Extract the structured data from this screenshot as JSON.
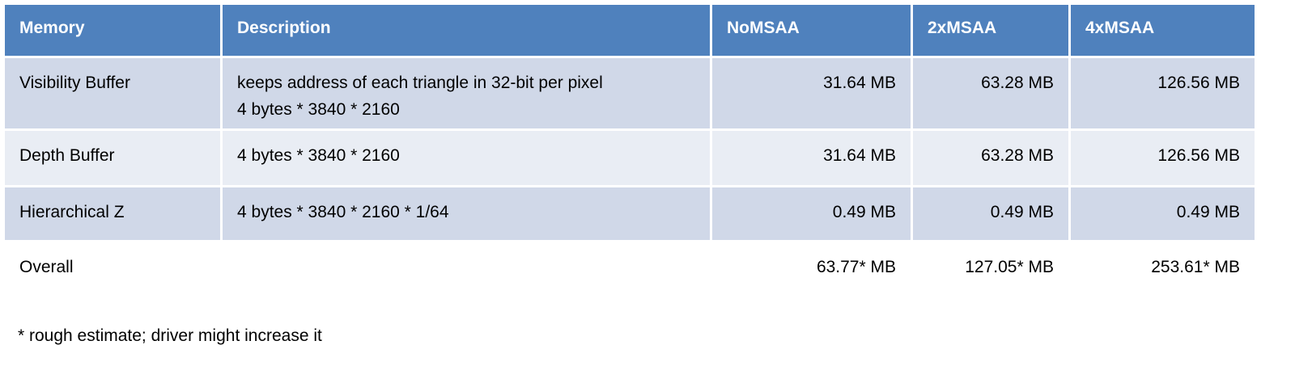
{
  "table": {
    "header": [
      "Memory",
      "Description",
      "NoMSAA",
      "2xMSAA",
      "4xMSAA"
    ],
    "rows": [
      [
        "Visibility Buffer",
        [
          "keeps address of each triangle in 32-bit per pixel",
          "4 bytes * 3840 * 2160"
        ],
        "31.64 MB",
        "63.28 MB",
        "126.56 MB"
      ],
      [
        "Depth Buffer",
        [
          "4 bytes * 3840 * 2160"
        ],
        "31.64 MB",
        "63.28 MB",
        "126.56 MB"
      ],
      [
        "Hierarchical Z",
        [
          "4 bytes * 3840 * 2160 * 1/64"
        ],
        "0.49 MB",
        "0.49 MB",
        "0.49 MB"
      ],
      [
        "Overall",
        [],
        "63.77* MB",
        "127.05* MB",
        "253.61* MB"
      ]
    ]
  },
  "footnote": "* rough estimate; driver might increase it"
}
